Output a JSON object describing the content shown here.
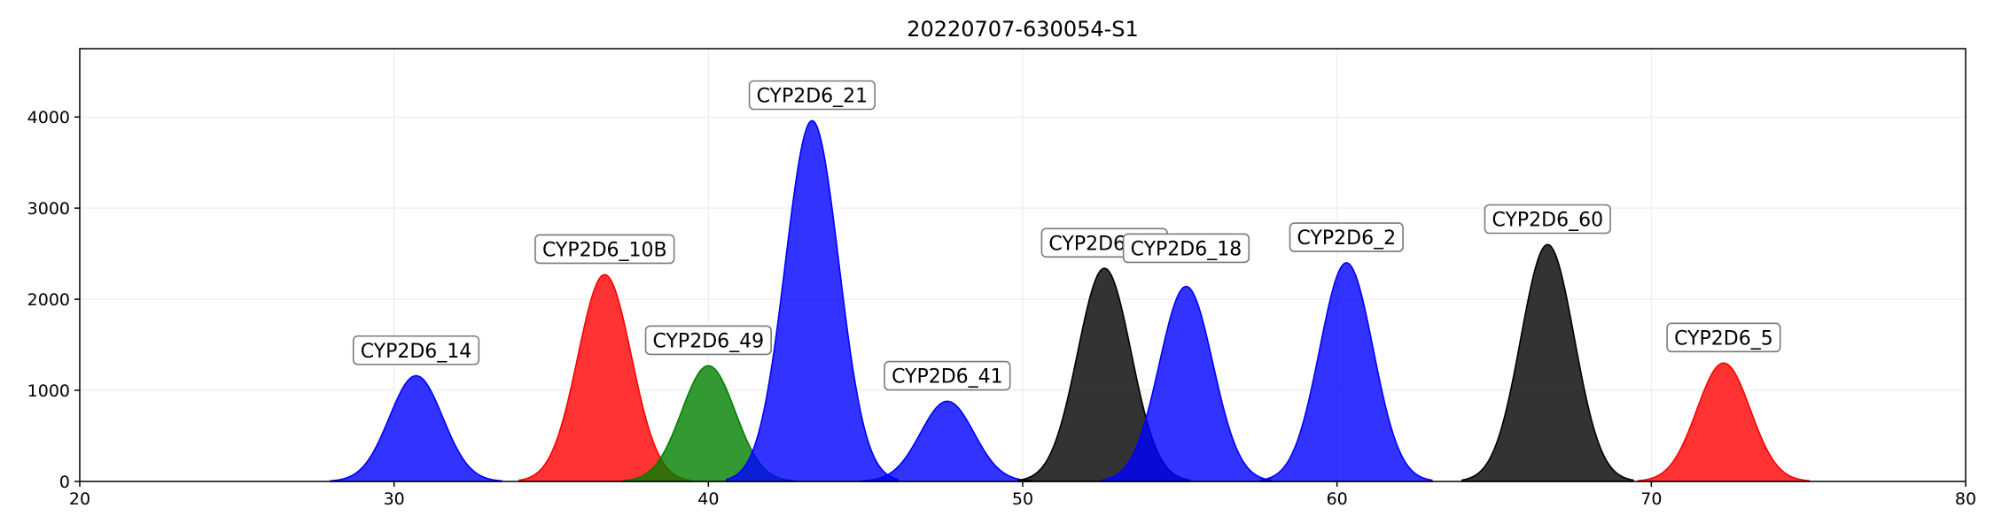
{
  "chart_data": {
    "type": "area",
    "title": "20220707-630054-S1",
    "xlabel": "",
    "ylabel": "",
    "xlim": [
      20,
      80
    ],
    "ylim": [
      0,
      4750
    ],
    "xticks": [
      20,
      30,
      40,
      50,
      60,
      70,
      80
    ],
    "yticks": [
      0,
      1000,
      2000,
      3000,
      4000
    ],
    "grid": true,
    "peaks": [
      {
        "label": "CYP2D6_14",
        "center": 30.7,
        "height": 1160,
        "sigma": 0.85,
        "color": "#0000ff"
      },
      {
        "label": "CYP2D6_10B",
        "center": 36.7,
        "height": 2270,
        "sigma": 0.85,
        "color": "#ff0000"
      },
      {
        "label": "CYP2D6_49",
        "center": 40.0,
        "height": 1270,
        "sigma": 0.85,
        "color": "#007f00"
      },
      {
        "label": "CYP2D6_21",
        "center": 43.3,
        "height": 3960,
        "sigma": 0.85,
        "color": "#0000ff"
      },
      {
        "label": "CYP2D6_41",
        "center": 47.6,
        "height": 880,
        "sigma": 0.85,
        "color": "#0000ff"
      },
      {
        "label": "CYP2D6_52",
        "center": 52.6,
        "height": 2340,
        "sigma": 0.85,
        "color": "#000000"
      },
      {
        "label": "CYP2D6_18",
        "center": 55.2,
        "height": 2140,
        "sigma": 0.85,
        "color": "#0000ff"
      },
      {
        "label": "CYP2D6_2",
        "center": 60.3,
        "height": 2400,
        "sigma": 0.85,
        "color": "#0000ff"
      },
      {
        "label": "CYP2D6_60",
        "center": 66.7,
        "height": 2600,
        "sigma": 0.85,
        "color": "#000000"
      },
      {
        "label": "CYP2D6_5",
        "center": 72.3,
        "height": 1300,
        "sigma": 0.85,
        "color": "#ff0000"
      }
    ]
  }
}
